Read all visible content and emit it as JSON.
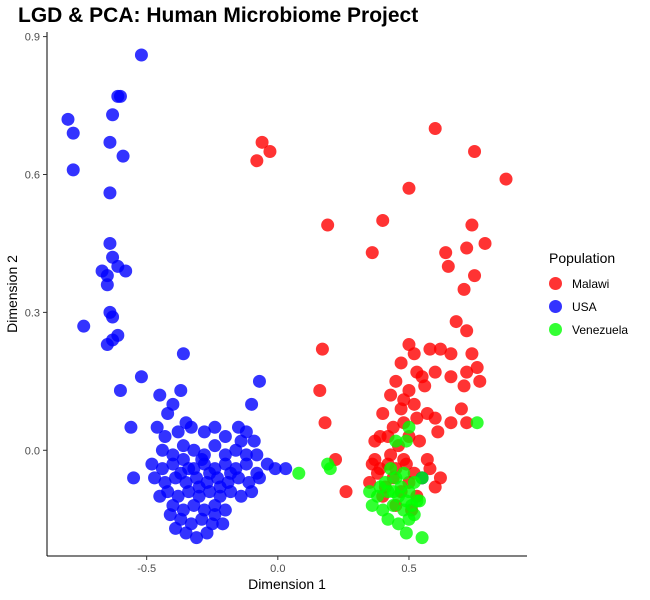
{
  "chart_data": {
    "type": "scatter",
    "title": "LGD & PCA: Human Microbiome Project",
    "xlabel": "Dimension 1",
    "ylabel": "Dimension 2",
    "xlim": [
      -0.88,
      0.95
    ],
    "ylim": [
      -0.23,
      0.91
    ],
    "xticks": [
      -0.5,
      0.0,
      0.5
    ],
    "xtick_labels": [
      "-0.5",
      "0.0",
      "0.5"
    ],
    "yticks": [
      0.0,
      0.3,
      0.6,
      0.9
    ],
    "ytick_labels": [
      "0.0",
      "0.3",
      "0.6",
      "0.9"
    ],
    "grid": false,
    "legend": {
      "title": "Population",
      "position": "right"
    },
    "series": [
      {
        "name": "Malawi",
        "color": "#FF0000",
        "points": [
          [
            -0.08,
            0.63
          ],
          [
            -0.06,
            0.67
          ],
          [
            -0.03,
            0.65
          ],
          [
            0.6,
            0.7
          ],
          [
            0.75,
            0.65
          ],
          [
            0.87,
            0.59
          ],
          [
            0.5,
            0.57
          ],
          [
            0.4,
            0.5
          ],
          [
            0.19,
            0.49
          ],
          [
            0.74,
            0.49
          ],
          [
            0.36,
            0.43
          ],
          [
            0.64,
            0.43
          ],
          [
            0.79,
            0.45
          ],
          [
            0.72,
            0.44
          ],
          [
            0.65,
            0.4
          ],
          [
            0.75,
            0.38
          ],
          [
            0.71,
            0.35
          ],
          [
            0.68,
            0.28
          ],
          [
            0.72,
            0.26
          ],
          [
            0.66,
            0.21
          ],
          [
            0.74,
            0.21
          ],
          [
            0.72,
            0.17
          ],
          [
            0.76,
            0.18
          ],
          [
            0.77,
            0.15
          ],
          [
            0.62,
            0.22
          ],
          [
            0.58,
            0.22
          ],
          [
            0.66,
            0.16
          ],
          [
            0.6,
            0.17
          ],
          [
            0.71,
            0.14
          ],
          [
            0.17,
            0.22
          ],
          [
            0.16,
            0.13
          ],
          [
            0.18,
            0.06
          ],
          [
            0.5,
            0.23
          ],
          [
            0.52,
            0.21
          ],
          [
            0.47,
            0.19
          ],
          [
            0.53,
            0.17
          ],
          [
            0.55,
            0.16
          ],
          [
            0.45,
            0.15
          ],
          [
            0.5,
            0.13
          ],
          [
            0.48,
            0.11
          ],
          [
            0.56,
            0.14
          ],
          [
            0.43,
            0.12
          ],
          [
            0.52,
            0.1
          ],
          [
            0.47,
            0.09
          ],
          [
            0.57,
            0.08
          ],
          [
            0.4,
            0.08
          ],
          [
            0.44,
            0.05
          ],
          [
            0.48,
            0.06
          ],
          [
            0.53,
            0.07
          ],
          [
            0.6,
            0.07
          ],
          [
            0.66,
            0.06
          ],
          [
            0.42,
            0.03
          ],
          [
            0.39,
            0.03
          ],
          [
            0.37,
            0.02
          ],
          [
            0.46,
            0.01
          ],
          [
            0.5,
            0.03
          ],
          [
            0.54,
            0.02
          ],
          [
            0.61,
            0.04
          ],
          [
            0.37,
            -0.02
          ],
          [
            0.39,
            -0.04
          ],
          [
            0.42,
            -0.03
          ],
          [
            0.45,
            -0.04
          ],
          [
            0.48,
            -0.02
          ],
          [
            0.52,
            -0.05
          ],
          [
            0.55,
            -0.06
          ],
          [
            0.58,
            -0.04
          ],
          [
            0.62,
            -0.06
          ],
          [
            0.6,
            -0.08
          ],
          [
            0.35,
            -0.07
          ],
          [
            0.38,
            -0.05
          ],
          [
            0.41,
            -0.08
          ],
          [
            0.44,
            -0.06
          ],
          [
            0.47,
            -0.09
          ],
          [
            0.5,
            -0.07
          ],
          [
            0.53,
            -0.1
          ],
          [
            0.4,
            -0.1
          ],
          [
            0.26,
            -0.09
          ],
          [
            0.22,
            -0.02
          ],
          [
            0.36,
            -0.03
          ],
          [
            0.43,
            -0.01
          ],
          [
            0.49,
            -0.03
          ],
          [
            0.57,
            -0.02
          ],
          [
            0.45,
            -0.12
          ],
          [
            0.51,
            -0.13
          ],
          [
            0.7,
            0.09
          ],
          [
            0.72,
            0.06
          ]
        ]
      },
      {
        "name": "USA",
        "color": "#0000FF",
        "points": [
          [
            -0.52,
            0.86
          ],
          [
            -0.8,
            0.72
          ],
          [
            -0.78,
            0.69
          ],
          [
            -0.63,
            0.73
          ],
          [
            -0.64,
            0.67
          ],
          [
            -0.6,
            0.77
          ],
          [
            -0.61,
            0.77
          ],
          [
            -0.59,
            0.64
          ],
          [
            -0.78,
            0.61
          ],
          [
            -0.64,
            0.56
          ],
          [
            -0.64,
            0.45
          ],
          [
            -0.63,
            0.42
          ],
          [
            -0.61,
            0.4
          ],
          [
            -0.58,
            0.39
          ],
          [
            -0.67,
            0.39
          ],
          [
            -0.65,
            0.38
          ],
          [
            -0.65,
            0.36
          ],
          [
            -0.74,
            0.27
          ],
          [
            -0.64,
            0.3
          ],
          [
            -0.63,
            0.29
          ],
          [
            -0.65,
            0.23
          ],
          [
            -0.61,
            0.25
          ],
          [
            -0.63,
            0.24
          ],
          [
            -0.36,
            0.21
          ],
          [
            -0.52,
            0.16
          ],
          [
            -0.6,
            0.13
          ],
          [
            -0.56,
            0.05
          ],
          [
            -0.37,
            0.13
          ],
          [
            -0.07,
            0.15
          ],
          [
            -0.1,
            0.1
          ],
          [
            -0.45,
            0.12
          ],
          [
            -0.42,
            0.08
          ],
          [
            -0.4,
            0.1
          ],
          [
            -0.35,
            0.06
          ],
          [
            -0.46,
            0.05
          ],
          [
            -0.43,
            0.03
          ],
          [
            -0.38,
            0.04
          ],
          [
            -0.33,
            0.05
          ],
          [
            -0.28,
            0.04
          ],
          [
            -0.24,
            0.05
          ],
          [
            -0.2,
            0.03
          ],
          [
            -0.15,
            0.05
          ],
          [
            -0.12,
            0.04
          ],
          [
            -0.14,
            0.02
          ],
          [
            -0.09,
            0.02
          ],
          [
            -0.44,
            0.0
          ],
          [
            -0.4,
            -0.01
          ],
          [
            -0.36,
            0.01
          ],
          [
            -0.32,
            0.0
          ],
          [
            -0.28,
            -0.01
          ],
          [
            -0.24,
            0.01
          ],
          [
            -0.2,
            -0.01
          ],
          [
            -0.16,
            0.0
          ],
          [
            -0.12,
            -0.01
          ],
          [
            -0.08,
            -0.01
          ],
          [
            -0.04,
            -0.03
          ],
          [
            -0.01,
            -0.04
          ],
          [
            0.03,
            -0.04
          ],
          [
            -0.48,
            -0.03
          ],
          [
            -0.44,
            -0.04
          ],
          [
            -0.4,
            -0.03
          ],
          [
            -0.36,
            -0.02
          ],
          [
            -0.32,
            -0.04
          ],
          [
            -0.28,
            -0.03
          ],
          [
            -0.24,
            -0.04
          ],
          [
            -0.2,
            -0.03
          ],
          [
            -0.16,
            -0.04
          ],
          [
            -0.12,
            -0.03
          ],
          [
            -0.08,
            -0.05
          ],
          [
            -0.47,
            -0.06
          ],
          [
            -0.43,
            -0.07
          ],
          [
            -0.39,
            -0.06
          ],
          [
            -0.35,
            -0.07
          ],
          [
            -0.31,
            -0.06
          ],
          [
            -0.27,
            -0.07
          ],
          [
            -0.23,
            -0.06
          ],
          [
            -0.19,
            -0.07
          ],
          [
            -0.15,
            -0.06
          ],
          [
            -0.11,
            -0.07
          ],
          [
            -0.07,
            -0.06
          ],
          [
            -0.55,
            -0.06
          ],
          [
            -0.42,
            -0.09
          ],
          [
            -0.38,
            -0.1
          ],
          [
            -0.34,
            -0.09
          ],
          [
            -0.3,
            -0.1
          ],
          [
            -0.26,
            -0.09
          ],
          [
            -0.22,
            -0.1
          ],
          [
            -0.18,
            -0.09
          ],
          [
            -0.14,
            -0.1
          ],
          [
            -0.1,
            -0.09
          ],
          [
            -0.45,
            -0.1
          ],
          [
            -0.4,
            -0.12
          ],
          [
            -0.36,
            -0.13
          ],
          [
            -0.32,
            -0.12
          ],
          [
            -0.28,
            -0.13
          ],
          [
            -0.24,
            -0.12
          ],
          [
            -0.2,
            -0.13
          ],
          [
            -0.37,
            -0.15
          ],
          [
            -0.33,
            -0.16
          ],
          [
            -0.29,
            -0.15
          ],
          [
            -0.25,
            -0.16
          ],
          [
            -0.35,
            -0.18
          ],
          [
            -0.31,
            -0.19
          ],
          [
            -0.27,
            -0.18
          ],
          [
            -0.39,
            -0.17
          ],
          [
            -0.24,
            -0.14
          ],
          [
            -0.3,
            -0.08
          ],
          [
            -0.26,
            -0.05
          ],
          [
            -0.34,
            -0.04
          ],
          [
            -0.22,
            -0.08
          ],
          [
            -0.18,
            -0.05
          ],
          [
            -0.29,
            -0.02
          ],
          [
            -0.37,
            -0.05
          ],
          [
            -0.41,
            -0.14
          ],
          [
            -0.21,
            -0.16
          ],
          [
            0.55,
            -0.06
          ]
        ]
      },
      {
        "name": "Venezuela",
        "color": "#00FF00",
        "points": [
          [
            0.08,
            -0.05
          ],
          [
            0.19,
            -0.03
          ],
          [
            0.2,
            -0.04
          ],
          [
            0.76,
            0.06
          ],
          [
            0.5,
            0.05
          ],
          [
            0.49,
            0.02
          ],
          [
            0.45,
            0.02
          ],
          [
            0.43,
            -0.04
          ],
          [
            0.41,
            -0.07
          ],
          [
            0.45,
            -0.06
          ],
          [
            0.48,
            -0.05
          ],
          [
            0.52,
            -0.07
          ],
          [
            0.55,
            -0.06
          ],
          [
            0.38,
            -0.1
          ],
          [
            0.42,
            -0.09
          ],
          [
            0.46,
            -0.1
          ],
          [
            0.5,
            -0.09
          ],
          [
            0.54,
            -0.11
          ],
          [
            0.36,
            -0.12
          ],
          [
            0.4,
            -0.13
          ],
          [
            0.44,
            -0.12
          ],
          [
            0.48,
            -0.13
          ],
          [
            0.52,
            -0.14
          ],
          [
            0.42,
            -0.15
          ],
          [
            0.46,
            -0.16
          ],
          [
            0.5,
            -0.15
          ],
          [
            0.49,
            -0.18
          ],
          [
            0.55,
            -0.19
          ],
          [
            0.53,
            -0.11
          ],
          [
            0.39,
            -0.08
          ],
          [
            0.47,
            -0.08
          ],
          [
            0.44,
            -0.09
          ],
          [
            0.51,
            -0.12
          ],
          [
            0.35,
            -0.09
          ],
          [
            0.49,
            -0.11
          ]
        ]
      }
    ]
  }
}
